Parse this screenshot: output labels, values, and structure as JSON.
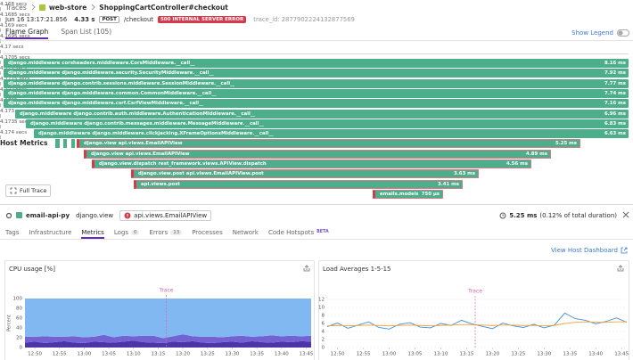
{
  "breadcrumb": {
    "root": "Traces",
    "service": "web-store",
    "resource": "ShoppingCartController#checkout"
  },
  "trace": {
    "date": "Jun 16 13:17:21.856",
    "duration": "4.33 s",
    "method": "POST",
    "path": "/checkout",
    "status": "500 INTERNAL SERVER ERROR",
    "trace_id_label": "trace_id:",
    "trace_id": "2877902224132877569"
  },
  "view_tabs": [
    "Flame Graph",
    "Span List (105)"
  ],
  "show_legend": "Show Legend",
  "flame_graph": {
    "axis": [
      "4.168 secs",
      "4.1685 secs",
      "4.169 secs",
      "4.1695 secs",
      "4.17 secs",
      "4.1705 secs",
      "4.171 secs",
      "4.1715 secs",
      "4.172 secs",
      "4.1725 secs",
      "4.173 secs",
      "4.1735 secs",
      "4.174 secs"
    ],
    "spans": [
      {
        "name": "django.middleware corsheaders.middleware.CorsMiddleware.__call__",
        "duration": "8.16 ms",
        "error": false
      },
      {
        "name": "django.middleware django.middleware.security.SecurityMiddleware.__call__",
        "duration": "7.92 ms",
        "error": false
      },
      {
        "name": "django.middleware django.contrib.sessions.middleware.SessionMiddleware.__call__",
        "duration": "7.77 ms",
        "error": false
      },
      {
        "name": "django.middleware django.middleware.common.CommonMiddleware.__call__",
        "duration": "7.74 ms",
        "error": false
      },
      {
        "name": "django.middleware django.middleware.csrf.CsrfViewMiddleware.__call__",
        "duration": "7.16 ms",
        "error": false
      },
      {
        "name": "django.middleware django.contrib.auth.middleware.AuthenticationMiddleware.__call__",
        "duration": "6.96 ms",
        "error": false
      },
      {
        "name": "django.middleware django.contrib.messages.middleware.MessageMiddleware.__call__",
        "duration": "6.83 ms",
        "error": false
      },
      {
        "name": "django.middleware django.middleware.clickjacking.XFrameOptionsMiddleware.__call__",
        "duration": "6.63 ms",
        "error": false
      },
      {
        "name": "django.view api.views.EmailAPIView",
        "duration": "5.25 ms",
        "error": true
      },
      {
        "name": "django.view api.views.EmailAPIView",
        "duration": "4.89 ms",
        "error": true
      },
      {
        "name": "django.view.dispatch rest_framework.views.APIView.dispatch",
        "duration": "4.56 ms",
        "error": true
      },
      {
        "name": "django.view.post api.views.EmailAPIView.post",
        "duration": "3.63 ms",
        "error": true
      },
      {
        "name": "api.views.post",
        "duration": "3.41 ms",
        "error": true
      },
      {
        "name": "emails.models.save",
        "duration": "750 µs",
        "error": true
      }
    ],
    "full_trace": "Full Trace"
  },
  "span_header": {
    "service": "email-api-py",
    "operation": "django.view",
    "resource": "api.views.EmailAPIView",
    "duration": "5.25 ms",
    "share": "(0.12% of total duration)"
  },
  "detail_tabs": [
    {
      "label": "Tags"
    },
    {
      "label": "Infrastructure"
    },
    {
      "label": "Metrics",
      "active": true
    },
    {
      "label": "Logs",
      "count": 0
    },
    {
      "label": "Errors",
      "count": 13
    },
    {
      "label": "Processes"
    },
    {
      "label": "Network"
    },
    {
      "label": "Code Hotspots",
      "badge": "BETA"
    }
  ],
  "section": {
    "title": "Host Metrics",
    "link": "View Host Dashboard"
  },
  "charts": [
    {
      "type": "area",
      "stacked": true,
      "title": "CPU usage [%]",
      "ylabel": "Percent",
      "marker": "Trace",
      "x": [
        "12:48",
        "12:50",
        "12:52",
        "12:54",
        "12:56",
        "12:58",
        "13:00",
        "13:02",
        "13:04",
        "13:06",
        "13:08",
        "13:10",
        "13:12",
        "13:14",
        "13:16",
        "13:18",
        "13:20",
        "13:22",
        "13:24",
        "13:26",
        "13:28",
        "13:30",
        "13:32",
        "13:34",
        "13:36",
        "13:38",
        "13:40",
        "13:42",
        "13:44",
        "13:46"
      ],
      "xlim": [
        "12:48",
        "13:46"
      ],
      "xticks": [
        "12:50",
        "12:55",
        "13:00",
        "13:05",
        "13:10",
        "13:15",
        "13:20",
        "13:25",
        "13:30",
        "13:35",
        "13:40",
        "13:45"
      ],
      "ylim": [
        0,
        100
      ],
      "yticks": [
        0,
        20,
        40,
        60,
        80,
        100
      ],
      "grid": true,
      "series": [
        {
          "color": "#4b35a8",
          "values": [
            10,
            12,
            9,
            11,
            13,
            10,
            9,
            12,
            11,
            10,
            12,
            14,
            11,
            10,
            9,
            12,
            11,
            13,
            10,
            9,
            11,
            12,
            10,
            13,
            11,
            10,
            12,
            11,
            13,
            12
          ]
        },
        {
          "color": "#7462d2",
          "values": [
            12,
            10,
            14,
            11,
            9,
            13,
            12,
            10,
            15,
            11,
            12,
            9,
            13,
            14,
            10,
            11,
            16,
            10,
            12,
            13,
            10,
            11,
            14,
            9,
            12,
            15,
            11,
            13,
            10,
            12
          ]
        },
        {
          "color": "#82b8f2",
          "values": [
            78,
            78,
            77,
            78,
            78,
            77,
            79,
            78,
            74,
            79,
            76,
            77,
            76,
            76,
            81,
            77,
            73,
            77,
            78,
            78,
            79,
            77,
            76,
            78,
            77,
            75,
            77,
            76,
            77,
            76
          ]
        }
      ]
    },
    {
      "type": "line",
      "title": "Load Averages 1-5-15",
      "marker": "Trace",
      "x": [
        "12:48",
        "12:50",
        "12:52",
        "12:54",
        "12:56",
        "12:58",
        "13:00",
        "13:02",
        "13:04",
        "13:06",
        "13:08",
        "13:10",
        "13:12",
        "13:14",
        "13:16",
        "13:18",
        "13:20",
        "13:22",
        "13:24",
        "13:26",
        "13:28",
        "13:30",
        "13:32",
        "13:34",
        "13:36",
        "13:38",
        "13:40",
        "13:42",
        "13:44",
        "13:46"
      ],
      "xlim": [
        "12:48",
        "13:46"
      ],
      "xticks": [
        "12:50",
        "12:55",
        "13:00",
        "13:05",
        "13:10",
        "13:15",
        "13:20",
        "13:25",
        "13:30",
        "13:35",
        "13:40",
        "13:45"
      ],
      "ylim": [
        0,
        12
      ],
      "yticks": [
        0,
        2,
        4,
        6,
        8,
        10,
        12
      ],
      "grid": true,
      "series": [
        {
          "color": "#3d8fe0",
          "values": [
            5.2,
            6.1,
            4.8,
            5.6,
            6.4,
            5.0,
            4.6,
            5.8,
            6.2,
            5.1,
            4.9,
            6.0,
            5.5,
            6.8,
            5.9,
            5.3,
            4.7,
            6.1,
            5.4,
            5.0,
            5.8,
            4.9,
            5.6,
            8.6,
            7.2,
            6.8,
            5.9,
            6.5,
            7.4,
            6.3
          ]
        },
        {
          "color": "#f2a33a",
          "values": [
            5.4,
            5.5,
            5.4,
            5.5,
            5.6,
            5.5,
            5.4,
            5.5,
            5.6,
            5.5,
            5.4,
            5.5,
            5.6,
            5.7,
            5.7,
            5.6,
            5.5,
            5.6,
            5.6,
            5.5,
            5.5,
            5.4,
            5.5,
            6.0,
            6.3,
            6.4,
            6.3,
            6.3,
            6.4,
            6.4
          ]
        }
      ]
    }
  ]
}
